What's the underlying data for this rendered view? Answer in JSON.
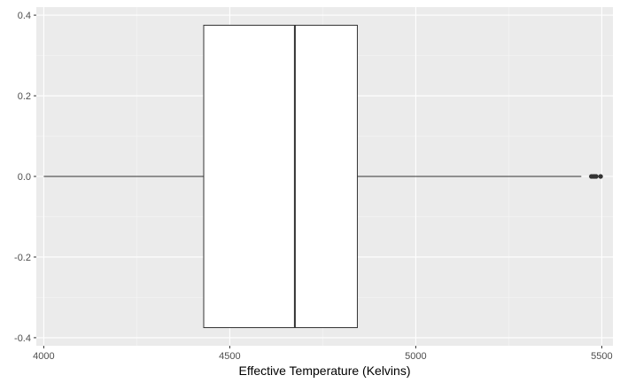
{
  "chart_data": {
    "type": "boxplot",
    "orientation": "horizontal",
    "xlabel": "Effective Temperature (Kelvins)",
    "ylabel": "",
    "xlim": [
      3980,
      5530
    ],
    "ylim": [
      -0.42,
      0.42
    ],
    "x_ticks": [
      4000,
      4500,
      5000,
      5500
    ],
    "x_tick_labels": [
      "4000",
      "4500",
      "5000",
      "5500"
    ],
    "y_ticks": [
      -0.4,
      -0.2,
      0.0,
      0.2,
      0.4
    ],
    "y_tick_labels": [
      "-0.4",
      "-0.2",
      "0.0",
      "0.2",
      "0.4"
    ],
    "grid": true,
    "box": {
      "whisker_low": 4000,
      "q1": 4430,
      "median": 4675,
      "q3": 4843,
      "whisker_high": 5445,
      "y_center": 0.0,
      "half_height": 0.375
    },
    "outliers": [
      5472,
      5477,
      5481,
      5485,
      5497
    ],
    "colors": {
      "panel_background": "#ebebeb",
      "grid_major": "#ffffff",
      "grid_minor": "#f5f5f5",
      "box_fill": "#ffffff",
      "box_stroke": "#333333",
      "outlier": "#333333",
      "tick_text": "#4d4d4d",
      "title_text": "#000000"
    }
  }
}
